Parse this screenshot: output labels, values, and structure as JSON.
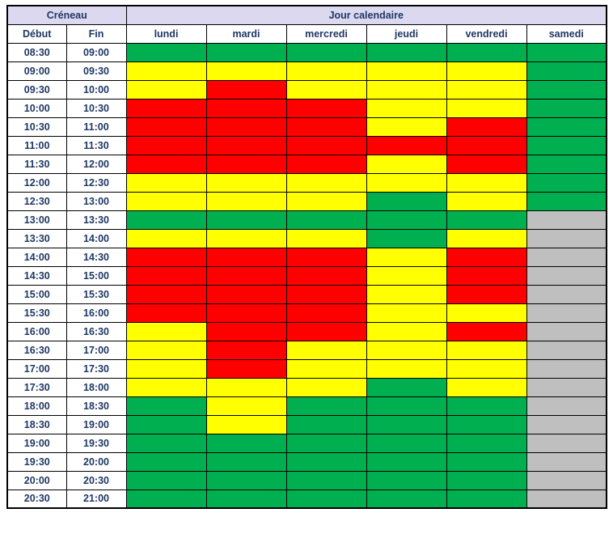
{
  "chart_data": {
    "type": "table",
    "header": {
      "creneau": "Créneau",
      "jour_calendaire": "Jour calendaire",
      "debut": "Début",
      "fin": "Fin"
    },
    "days": [
      "lundi",
      "mardi",
      "mercredi",
      "jeudi",
      "vendredi",
      "samedi"
    ],
    "state_colors": {
      "green": "#00B050",
      "yellow": "#FFFF00",
      "red": "#FF0000",
      "gray": "#BFBFBF"
    },
    "theme": {
      "header_bg": "#DBD8F0",
      "text_color": "#1F3864",
      "border_color": "#000000"
    },
    "rows": [
      {
        "debut": "08:30",
        "fin": "09:00",
        "cells": [
          "green",
          "green",
          "green",
          "green",
          "green",
          "green"
        ]
      },
      {
        "debut": "09:00",
        "fin": "09:30",
        "cells": [
          "yellow",
          "yellow",
          "yellow",
          "yellow",
          "yellow",
          "green"
        ]
      },
      {
        "debut": "09:30",
        "fin": "10:00",
        "cells": [
          "yellow",
          "red",
          "yellow",
          "yellow",
          "yellow",
          "green"
        ]
      },
      {
        "debut": "10:00",
        "fin": "10:30",
        "cells": [
          "red",
          "red",
          "red",
          "yellow",
          "yellow",
          "green"
        ]
      },
      {
        "debut": "10:30",
        "fin": "11:00",
        "cells": [
          "red",
          "red",
          "red",
          "yellow",
          "red",
          "green"
        ]
      },
      {
        "debut": "11:00",
        "fin": "11:30",
        "cells": [
          "red",
          "red",
          "red",
          "red",
          "red",
          "green"
        ]
      },
      {
        "debut": "11:30",
        "fin": "12:00",
        "cells": [
          "red",
          "red",
          "red",
          "yellow",
          "red",
          "green"
        ]
      },
      {
        "debut": "12:00",
        "fin": "12:30",
        "cells": [
          "yellow",
          "yellow",
          "yellow",
          "yellow",
          "yellow",
          "green"
        ]
      },
      {
        "debut": "12:30",
        "fin": "13:00",
        "cells": [
          "yellow",
          "yellow",
          "yellow",
          "green",
          "yellow",
          "green"
        ]
      },
      {
        "debut": "13:00",
        "fin": "13:30",
        "cells": [
          "green",
          "green",
          "green",
          "green",
          "green",
          "gray"
        ]
      },
      {
        "debut": "13:30",
        "fin": "14:00",
        "cells": [
          "yellow",
          "yellow",
          "yellow",
          "green",
          "yellow",
          "gray"
        ]
      },
      {
        "debut": "14:00",
        "fin": "14:30",
        "cells": [
          "red",
          "red",
          "red",
          "yellow",
          "red",
          "gray"
        ]
      },
      {
        "debut": "14:30",
        "fin": "15:00",
        "cells": [
          "red",
          "red",
          "red",
          "yellow",
          "red",
          "gray"
        ]
      },
      {
        "debut": "15:00",
        "fin": "15:30",
        "cells": [
          "red",
          "red",
          "red",
          "yellow",
          "red",
          "gray"
        ]
      },
      {
        "debut": "15:30",
        "fin": "16:00",
        "cells": [
          "red",
          "red",
          "red",
          "yellow",
          "yellow",
          "gray"
        ]
      },
      {
        "debut": "16:00",
        "fin": "16:30",
        "cells": [
          "yellow",
          "red",
          "red",
          "yellow",
          "red",
          "gray"
        ]
      },
      {
        "debut": "16:30",
        "fin": "17:00",
        "cells": [
          "yellow",
          "red",
          "yellow",
          "yellow",
          "yellow",
          "gray"
        ]
      },
      {
        "debut": "17:00",
        "fin": "17:30",
        "cells": [
          "yellow",
          "red",
          "yellow",
          "yellow",
          "yellow",
          "gray"
        ]
      },
      {
        "debut": "17:30",
        "fin": "18:00",
        "cells": [
          "yellow",
          "yellow",
          "yellow",
          "green",
          "yellow",
          "gray"
        ]
      },
      {
        "debut": "18:00",
        "fin": "18:30",
        "cells": [
          "green",
          "yellow",
          "green",
          "green",
          "green",
          "gray"
        ]
      },
      {
        "debut": "18:30",
        "fin": "19:00",
        "cells": [
          "green",
          "yellow",
          "green",
          "green",
          "green",
          "gray"
        ]
      },
      {
        "debut": "19:00",
        "fin": "19:30",
        "cells": [
          "green",
          "green",
          "green",
          "green",
          "green",
          "gray"
        ]
      },
      {
        "debut": "19:30",
        "fin": "20:00",
        "cells": [
          "green",
          "green",
          "green",
          "green",
          "green",
          "gray"
        ]
      },
      {
        "debut": "20:00",
        "fin": "20:30",
        "cells": [
          "green",
          "green",
          "green",
          "green",
          "green",
          "gray"
        ]
      },
      {
        "debut": "20:30",
        "fin": "21:00",
        "cells": [
          "green",
          "green",
          "green",
          "green",
          "green",
          "gray"
        ]
      }
    ]
  }
}
